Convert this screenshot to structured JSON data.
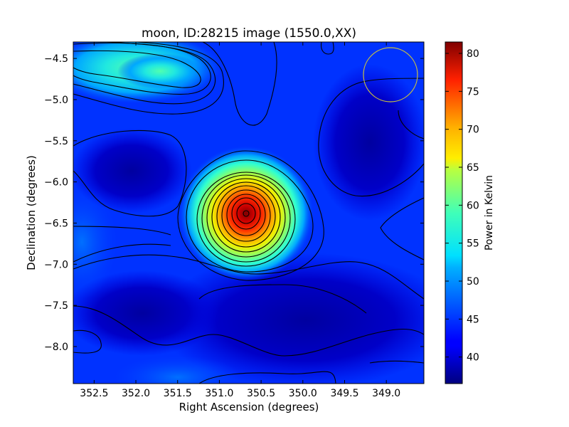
{
  "chart_data": {
    "type": "heatmap",
    "title": "moon, ID:28215 image (1550.0,XX)",
    "xlabel": "Right Ascension (degrees)",
    "ylabel": "Declination (degrees)",
    "xlim": [
      352.75,
      348.55
    ],
    "ylim": [
      -8.45,
      -4.3
    ],
    "x_ticks": [
      "352.5",
      "352.0",
      "351.5",
      "351.0",
      "350.5",
      "350.0",
      "349.5",
      "349.0"
    ],
    "x_tick_values": [
      352.5,
      352.0,
      351.5,
      351.0,
      350.5,
      350.0,
      349.5,
      349.0
    ],
    "y_ticks": [
      "−4.5",
      "−5.0",
      "−5.5",
      "−6.0",
      "−6.5",
      "−7.0",
      "−7.5",
      "−8.0"
    ],
    "y_tick_values": [
      -4.5,
      -5.0,
      -5.5,
      -6.0,
      -6.5,
      -7.0,
      -7.5,
      -8.0
    ],
    "colorbar": {
      "label": "Power in Kelvin",
      "range": [
        36.5,
        81.5
      ],
      "ticks": [
        "40",
        "45",
        "50",
        "55",
        "60",
        "65",
        "70",
        "75",
        "80"
      ],
      "tick_values": [
        40,
        45,
        50,
        55,
        60,
        65,
        70,
        75,
        80
      ],
      "colormap": "jet"
    },
    "peak": {
      "ra": 350.65,
      "dec": -6.4,
      "value": 81
    },
    "beam_circle": {
      "ra_center": 349.1,
      "dec_center": -4.72,
      "radius_deg": 0.33,
      "color": "#c8c040"
    },
    "background_level": 42,
    "features": [
      {
        "ra": 352.1,
        "dec": -4.55,
        "value": 52,
        "note": "bright ridge top-left"
      },
      {
        "ra": 349.4,
        "dec": -7.5,
        "value": 37.5,
        "note": "dark region bottom-right"
      }
    ],
    "contours": true,
    "grid": false
  }
}
